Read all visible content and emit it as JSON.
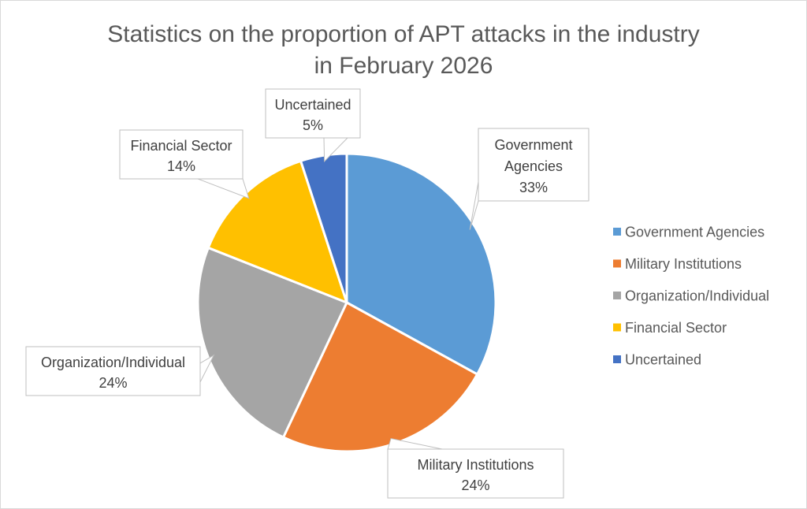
{
  "chart_data": {
    "type": "pie",
    "title": "Statistics on the proportion of APT attacks in the industry in February 2026",
    "title_lines": [
      "Statistics on the proportion of APT attacks in the industry",
      "in February 2026"
    ],
    "categories": [
      "Government Agencies",
      "Military Institutions",
      "Organization/Individual",
      "Financial Sector",
      "Uncertained"
    ],
    "values": [
      33,
      24,
      24,
      14,
      5
    ],
    "value_labels": [
      "33%",
      "24%",
      "24%",
      "14%",
      "5%"
    ],
    "colors": [
      "#5b9bd5",
      "#ed7d31",
      "#a5a5a5",
      "#ffc000",
      "#4472c4"
    ],
    "legend_position": "right",
    "data_label_style": "callout",
    "start_angle": "12 o'clock, clockwise"
  }
}
